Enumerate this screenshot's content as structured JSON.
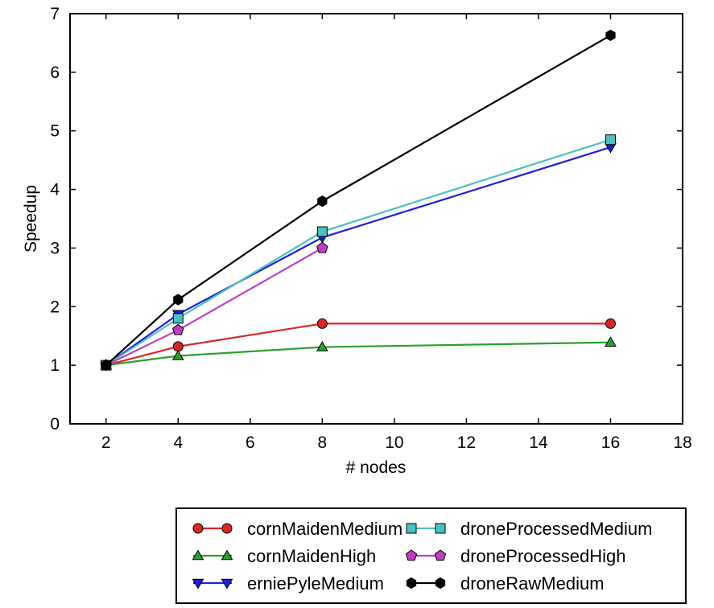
{
  "chart_data": {
    "type": "line",
    "xlabel": "# nodes",
    "ylabel": "Speedup",
    "xlim": [
      1,
      18
    ],
    "ylim": [
      0,
      7
    ],
    "xticks": [
      "2",
      "4",
      "6",
      "8",
      "10",
      "12",
      "14",
      "16",
      "18"
    ],
    "yticks": [
      "0",
      "1",
      "2",
      "3",
      "4",
      "5",
      "6",
      "7"
    ],
    "grid": false,
    "legend_position": "below",
    "series": [
      {
        "name": "cornMaidenMedium",
        "color": "#d62728",
        "marker": "circle",
        "x": [
          2,
          4,
          8,
          16
        ],
        "y": [
          1.0,
          1.32,
          1.71,
          1.71
        ]
      },
      {
        "name": "cornMaidenHigh",
        "color": "#2ca02c",
        "marker": "triangle-up",
        "x": [
          2,
          4,
          8,
          16
        ],
        "y": [
          1.0,
          1.16,
          1.31,
          1.39
        ]
      },
      {
        "name": "erniePyleMedium",
        "color": "#1f1fd6",
        "marker": "triangle-down",
        "x": [
          2,
          4,
          8,
          16
        ],
        "y": [
          1.0,
          1.87,
          3.18,
          4.72
        ]
      },
      {
        "name": "droneProcessedMedium",
        "color": "#4cc0c0",
        "marker": "square",
        "x": [
          2,
          4,
          8,
          16
        ],
        "y": [
          1.0,
          1.8,
          3.28,
          4.85
        ]
      },
      {
        "name": "droneProcessedHigh",
        "color": "#bf3fbf",
        "marker": "pentagon",
        "x": [
          2,
          4,
          8
        ],
        "y": [
          1.0,
          1.6,
          3.0
        ]
      },
      {
        "name": "droneRawMedium",
        "color": "#000000",
        "marker": "hexagon",
        "x": [
          2,
          4,
          8,
          16
        ],
        "y": [
          1.0,
          2.12,
          3.8,
          6.63
        ]
      }
    ]
  }
}
